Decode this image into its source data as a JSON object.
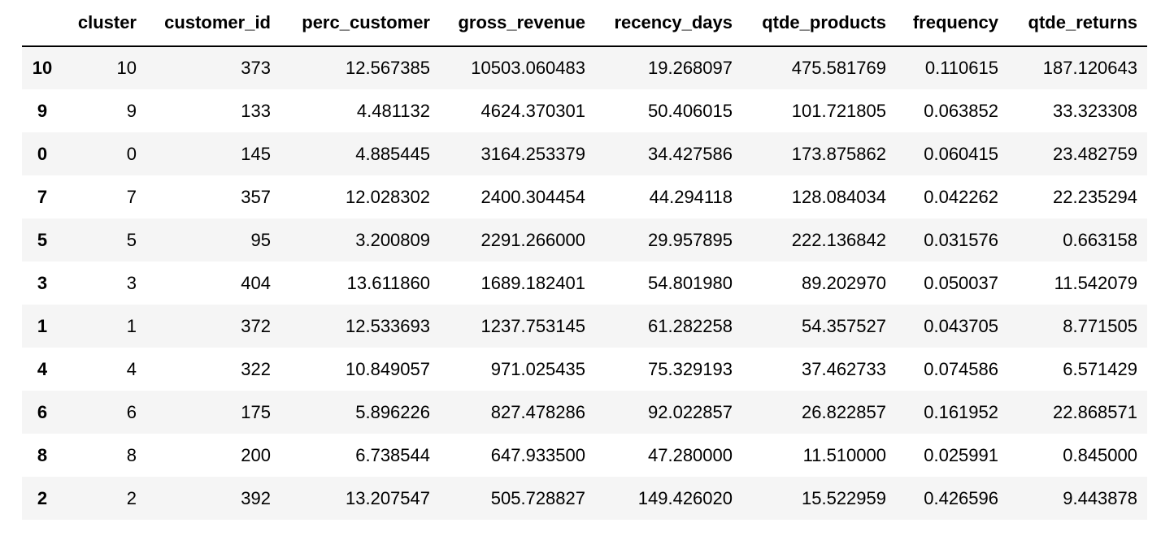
{
  "table": {
    "index_header": "",
    "columns": [
      "cluster",
      "customer_id",
      "perc_customer",
      "gross_revenue",
      "recency_days",
      "qtde_products",
      "frequency",
      "qtde_returns"
    ],
    "rows": [
      {
        "index": "10",
        "cells": [
          "10",
          "373",
          "12.567385",
          "10503.060483",
          "19.268097",
          "475.581769",
          "0.110615",
          "187.120643"
        ]
      },
      {
        "index": "9",
        "cells": [
          "9",
          "133",
          "4.481132",
          "4624.370301",
          "50.406015",
          "101.721805",
          "0.063852",
          "33.323308"
        ]
      },
      {
        "index": "0",
        "cells": [
          "0",
          "145",
          "4.885445",
          "3164.253379",
          "34.427586",
          "173.875862",
          "0.060415",
          "23.482759"
        ]
      },
      {
        "index": "7",
        "cells": [
          "7",
          "357",
          "12.028302",
          "2400.304454",
          "44.294118",
          "128.084034",
          "0.042262",
          "22.235294"
        ]
      },
      {
        "index": "5",
        "cells": [
          "5",
          "95",
          "3.200809",
          "2291.266000",
          "29.957895",
          "222.136842",
          "0.031576",
          "0.663158"
        ]
      },
      {
        "index": "3",
        "cells": [
          "3",
          "404",
          "13.611860",
          "1689.182401",
          "54.801980",
          "89.202970",
          "0.050037",
          "11.542079"
        ]
      },
      {
        "index": "1",
        "cells": [
          "1",
          "372",
          "12.533693",
          "1237.753145",
          "61.282258",
          "54.357527",
          "0.043705",
          "8.771505"
        ]
      },
      {
        "index": "4",
        "cells": [
          "4",
          "322",
          "10.849057",
          "971.025435",
          "75.329193",
          "37.462733",
          "0.074586",
          "6.571429"
        ]
      },
      {
        "index": "6",
        "cells": [
          "6",
          "175",
          "5.896226",
          "827.478286",
          "92.022857",
          "26.822857",
          "0.161952",
          "22.868571"
        ]
      },
      {
        "index": "8",
        "cells": [
          "8",
          "200",
          "6.738544",
          "647.933500",
          "47.280000",
          "11.510000",
          "0.025991",
          "0.845000"
        ]
      },
      {
        "index": "2",
        "cells": [
          "2",
          "392",
          "13.207547",
          "505.728827",
          "149.426020",
          "15.522959",
          "0.426596",
          "9.443878"
        ]
      }
    ]
  },
  "colors": {
    "stripe": "#f5f5f5",
    "header_rule": "#000000",
    "text": "#000000"
  }
}
